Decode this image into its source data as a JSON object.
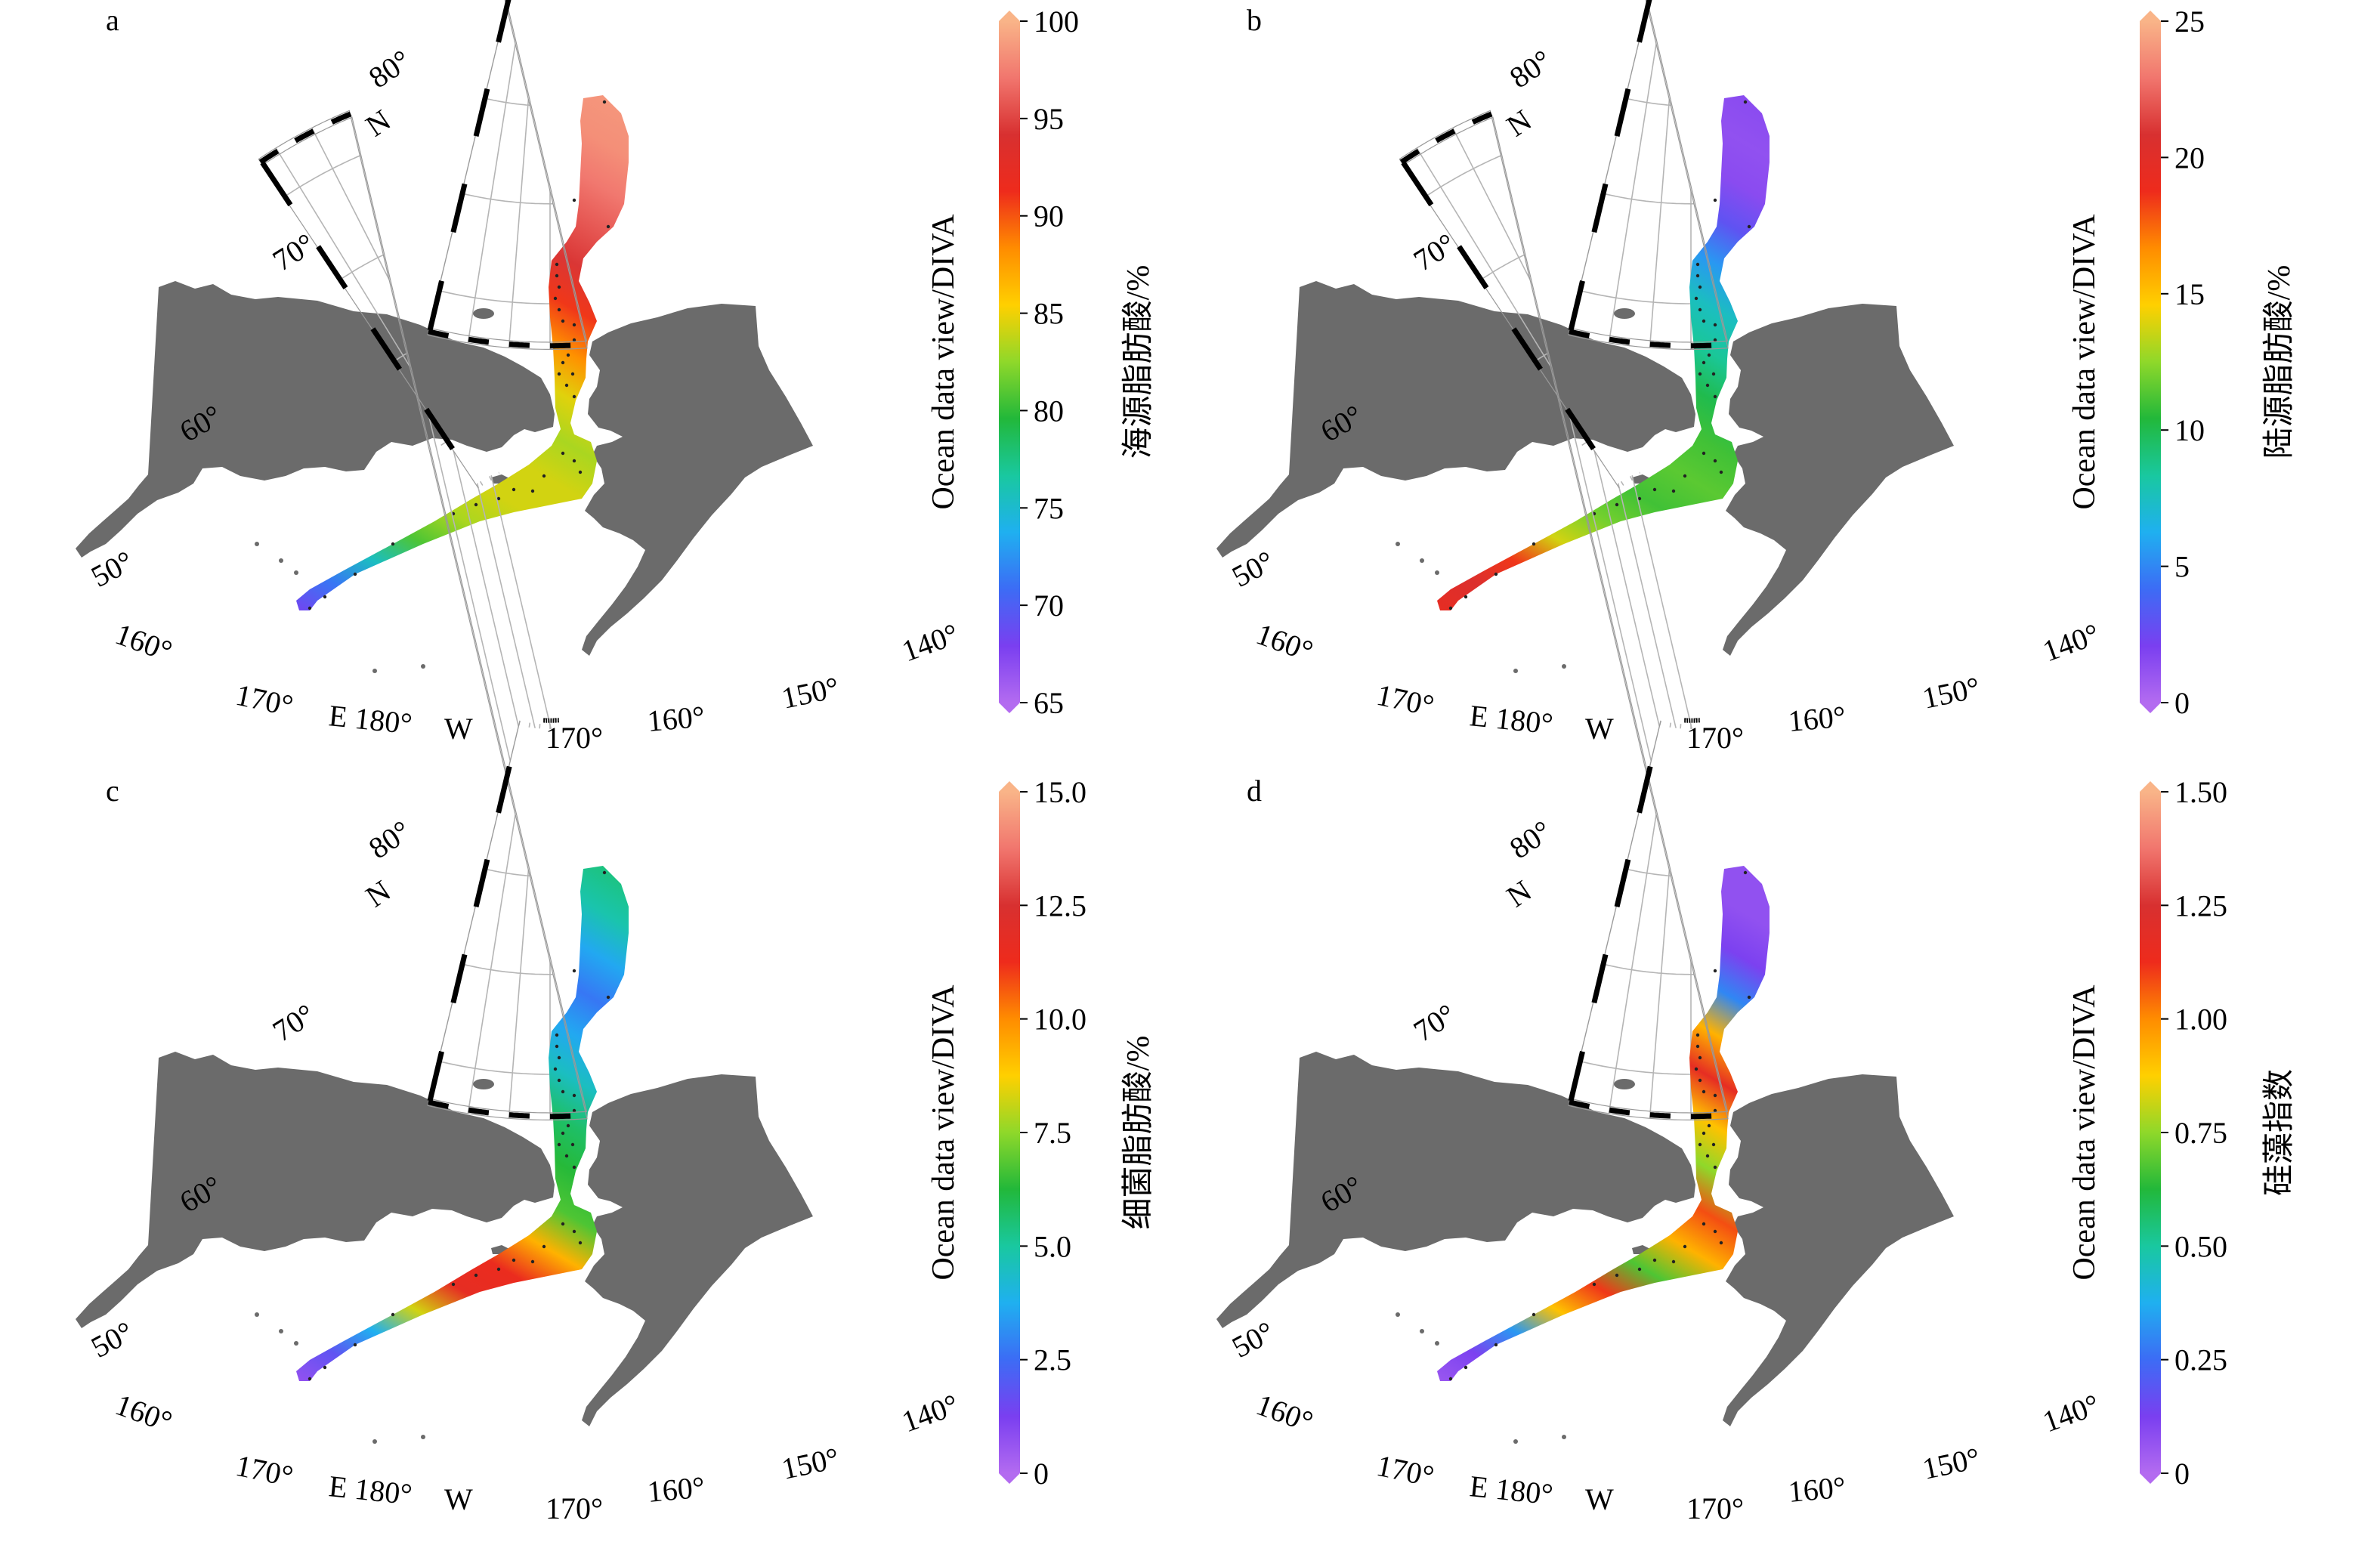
{
  "colors": {
    "land": "#6b6b6b",
    "graticule": "#b5b5b5",
    "frame": "#000000",
    "station": "#222222",
    "colormap": [
      "#b36bf0",
      "#7a3ff0",
      "#3c6cf5",
      "#1fb0f0",
      "#19c8a0",
      "#22b83a",
      "#8fd82a",
      "#ffd000",
      "#ff8c00",
      "#ee2b1c",
      "#d83030",
      "#f1766e",
      "#f9b488"
    ]
  },
  "map_labels": {
    "lat": [
      "50°",
      "60°",
      "70°",
      "80°"
    ],
    "north": "N",
    "lon_ticks": [
      "160°",
      "170°",
      "E 180°",
      "W",
      "170°",
      "160°",
      "150°",
      "140°"
    ]
  },
  "colorbar_title": "Ocean data view/DIVA",
  "panels": [
    {
      "letter": "a",
      "variable": "海源脂肪酸/%",
      "ticks": [
        "100",
        "95",
        "90",
        "85",
        "80",
        "75",
        "70",
        "65"
      ],
      "field_profile": [
        0.1,
        0.18,
        0.3,
        0.45,
        0.52,
        0.55,
        0.55,
        0.52,
        0.56,
        0.66,
        0.74,
        0.84,
        0.88,
        0.92,
        0.95,
        0.96
      ]
    },
    {
      "letter": "b",
      "variable": "陆源脂肪酸/%",
      "ticks": [
        "25",
        "20",
        "15",
        "10",
        "5",
        "0"
      ],
      "field_profile": [
        0.78,
        0.82,
        0.74,
        0.55,
        0.48,
        0.44,
        0.46,
        0.44,
        0.4,
        0.34,
        0.3,
        0.22,
        0.12,
        0.06,
        0.05,
        0.06
      ]
    },
    {
      "letter": "c",
      "variable": "细菌脂肪酸/%",
      "ticks": [
        "15.0",
        "12.5",
        "10.0",
        "7.5",
        "5.0",
        "2.5",
        "0"
      ],
      "field_profile": [
        0.05,
        0.12,
        0.25,
        0.55,
        0.78,
        0.76,
        0.62,
        0.45,
        0.42,
        0.38,
        0.3,
        0.24,
        0.18,
        0.24,
        0.32,
        0.36
      ]
    },
    {
      "letter": "d",
      "variable": "硅藻指数",
      "ticks": [
        "1.50",
        "1.25",
        "1.00",
        "0.75",
        "0.50",
        "0.25",
        "0"
      ],
      "field_profile": [
        0.04,
        0.08,
        0.22,
        0.6,
        0.74,
        0.45,
        0.62,
        0.72,
        0.5,
        0.6,
        0.78,
        0.62,
        0.2,
        0.08,
        0.05,
        0.05
      ]
    }
  ]
}
